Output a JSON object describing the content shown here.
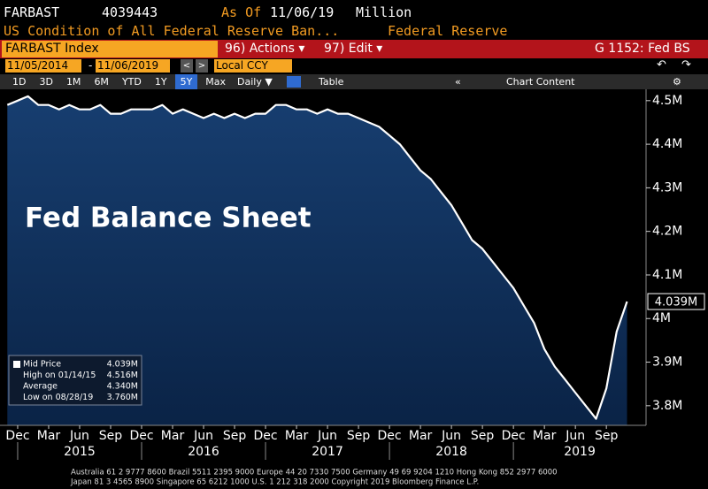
{
  "header": {
    "ticker": "FARBAST",
    "id": "4039443",
    "as_of_label": "As Of",
    "as_of": "11/06/19",
    "units": "Million",
    "description": "US Condition of All Federal Reserve Ban...",
    "source": "Federal Reserve"
  },
  "toolbar": {
    "security": "FARBAST Index",
    "actions": "96) Actions ▾",
    "edit": "97) Edit ▾",
    "page": "G 1152: Fed BS",
    "start_date": "11/05/2014",
    "end_date": "11/06/2019",
    "currency": "Local CCY",
    "periods": [
      "1D",
      "3D",
      "1M",
      "6M",
      "YTD",
      "1Y",
      "5Y",
      "Max"
    ],
    "selected_period": "5Y",
    "frequency": "Daily ▼",
    "table": "Table",
    "chart_content": "Chart Content"
  },
  "chart_data": {
    "type": "line",
    "title": "Fed Balance Sheet",
    "x": [
      "2014-11",
      "2014-12",
      "2015-01",
      "2015-02",
      "2015-03",
      "2015-04",
      "2015-05",
      "2015-06",
      "2015-07",
      "2015-08",
      "2015-09",
      "2015-10",
      "2015-11",
      "2015-12",
      "2016-01",
      "2016-02",
      "2016-03",
      "2016-04",
      "2016-05",
      "2016-06",
      "2016-07",
      "2016-08",
      "2016-09",
      "2016-10",
      "2016-11",
      "2016-12",
      "2017-01",
      "2017-02",
      "2017-03",
      "2017-04",
      "2017-05",
      "2017-06",
      "2017-07",
      "2017-08",
      "2017-09",
      "2017-10",
      "2017-11",
      "2017-12",
      "2018-01",
      "2018-02",
      "2018-03",
      "2018-04",
      "2018-05",
      "2018-06",
      "2018-07",
      "2018-08",
      "2018-09",
      "2018-10",
      "2018-11",
      "2018-12",
      "2019-01",
      "2019-02",
      "2019-03",
      "2019-04",
      "2019-05",
      "2019-06",
      "2019-07",
      "2019-08",
      "2019-09",
      "2019-10",
      "2019-11"
    ],
    "series": [
      {
        "name": "Mid Price",
        "color": "#ffffff",
        "last_value_label": "4.039M",
        "values": [
          4.49,
          4.5,
          4.51,
          4.49,
          4.49,
          4.48,
          4.49,
          4.48,
          4.48,
          4.49,
          4.47,
          4.47,
          4.48,
          4.48,
          4.48,
          4.49,
          4.47,
          4.48,
          4.47,
          4.46,
          4.47,
          4.46,
          4.47,
          4.46,
          4.47,
          4.47,
          4.49,
          4.49,
          4.48,
          4.48,
          4.47,
          4.48,
          4.47,
          4.47,
          4.46,
          4.45,
          4.44,
          4.42,
          4.4,
          4.37,
          4.34,
          4.32,
          4.29,
          4.26,
          4.22,
          4.18,
          4.16,
          4.13,
          4.1,
          4.07,
          4.03,
          3.99,
          3.93,
          3.89,
          3.86,
          3.83,
          3.8,
          3.77,
          3.84,
          3.97,
          4.039
        ]
      }
    ],
    "ylim": [
      3.755,
      4.526
    ],
    "yticks": [
      {
        "value": 3.8,
        "label": "3.8M"
      },
      {
        "value": 3.9,
        "label": "3.9M"
      },
      {
        "value": 4.0,
        "label": "4M"
      },
      {
        "value": 4.1,
        "label": "4.1M"
      },
      {
        "value": 4.2,
        "label": "4.2M"
      },
      {
        "value": 4.3,
        "label": "4.3M"
      },
      {
        "value": 4.4,
        "label": "4.4M"
      },
      {
        "value": 4.5,
        "label": "4.5M"
      }
    ],
    "xticks": [
      {
        "value": "2014-12",
        "label": "Dec"
      },
      {
        "value": "2015-03",
        "label": "Mar"
      },
      {
        "value": "2015-06",
        "label": "Jun"
      },
      {
        "value": "2015-09",
        "label": "Sep"
      },
      {
        "value": "2015-12",
        "label": "Dec"
      },
      {
        "value": "2016-03",
        "label": "Mar"
      },
      {
        "value": "2016-06",
        "label": "Jun"
      },
      {
        "value": "2016-09",
        "label": "Sep"
      },
      {
        "value": "2016-12",
        "label": "Dec"
      },
      {
        "value": "2017-03",
        "label": "Mar"
      },
      {
        "value": "2017-06",
        "label": "Jun"
      },
      {
        "value": "2017-09",
        "label": "Sep"
      },
      {
        "value": "2017-12",
        "label": "Dec"
      },
      {
        "value": "2018-03",
        "label": "Mar"
      },
      {
        "value": "2018-06",
        "label": "Jun"
      },
      {
        "value": "2018-09",
        "label": "Sep"
      },
      {
        "value": "2018-12",
        "label": "Dec"
      },
      {
        "value": "2019-03",
        "label": "Mar"
      },
      {
        "value": "2019-06",
        "label": "Jun"
      },
      {
        "value": "2019-09",
        "label": "Sep"
      }
    ],
    "year_labels": [
      "2015",
      "2016",
      "2017",
      "2018",
      "2019"
    ],
    "legend_stats": [
      {
        "name": "High on 01/14/15",
        "value": "4.516M"
      },
      {
        "name": "Average",
        "value": "4.340M"
      },
      {
        "name": "Low on 08/28/19",
        "value": "3.760M"
      }
    ],
    "last_value": "4.039M"
  },
  "footer": {
    "lines": [
      "Australia 61 2 9777 8600 Brazil 5511 2395 9000 Europe 44 20 7330 7500 Germany 49 69 9204 1210 Hong Kong 852 2977 6000",
      "Japan 81 3 4565 8900     Singapore 65 6212 1000     U.S. 1 212 318 2000     Copyright 2019 Bloomberg Finance L.P."
    ]
  }
}
